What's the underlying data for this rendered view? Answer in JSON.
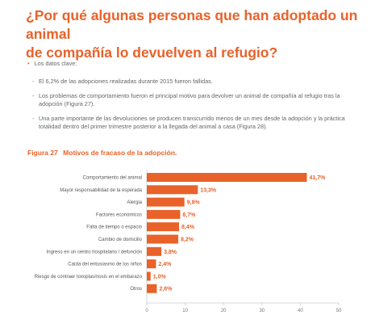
{
  "header": {
    "title_line1": "¿Por qué algunas personas que han adoptado un animal",
    "title_line2": "de compañía lo devuelven al refugio?"
  },
  "intro": {
    "bullet": "•",
    "label": "Los datos clave:"
  },
  "points": [
    "El 6,2% de las adopciones realizadas durante 2015 fueron fallidas.",
    "Los problemas de comportamiento fueron el principal motivo para devolver un animal de compañía al refugio tras la adopción (Figura 27).",
    "Una parte importante de las devoluciones se producen transcurrido menos de un mes desde la adopción y la práctica totalidad dentro del primer trimestre posterior a la llegada del animal a casa (Figura 28)."
  ],
  "figure": {
    "label": "Figura 27",
    "title": "Motivos de fracaso de la adopción."
  },
  "colors": {
    "accent": "#e8622a",
    "bar": "#e8622a",
    "axis": "#cccccc",
    "text": "#555555"
  },
  "chart_data": {
    "type": "bar",
    "orientation": "horizontal",
    "title": "Motivos de fracaso de la adopción.",
    "xlabel": "",
    "ylabel": "",
    "xlim": [
      0,
      50
    ],
    "xticks": [
      0,
      10,
      20,
      30,
      40,
      50
    ],
    "grid": false,
    "categories": [
      "Comportamiento del animal",
      "Mayor responsabilidad de la esperada",
      "Alergia",
      "Factores económicos",
      "Falta de tiempo o espacio",
      "Cambio de domicilio",
      "Ingreso en un centro hospitalario / defunción",
      "Caída del entusiasmo de los niños",
      "Riesgo de contraer toxoplasmosis en el embarazo",
      "Otros"
    ],
    "values": [
      41.7,
      13.3,
      9.8,
      8.7,
      8.4,
      8.2,
      3.8,
      2.4,
      1.0,
      2.6
    ],
    "value_labels": [
      "41,7%",
      "13,3%",
      "9,8%",
      "8,7%",
      "8,4%",
      "8,2%",
      "3,8%",
      "2,4%",
      "1,0%",
      "2,6%"
    ]
  }
}
